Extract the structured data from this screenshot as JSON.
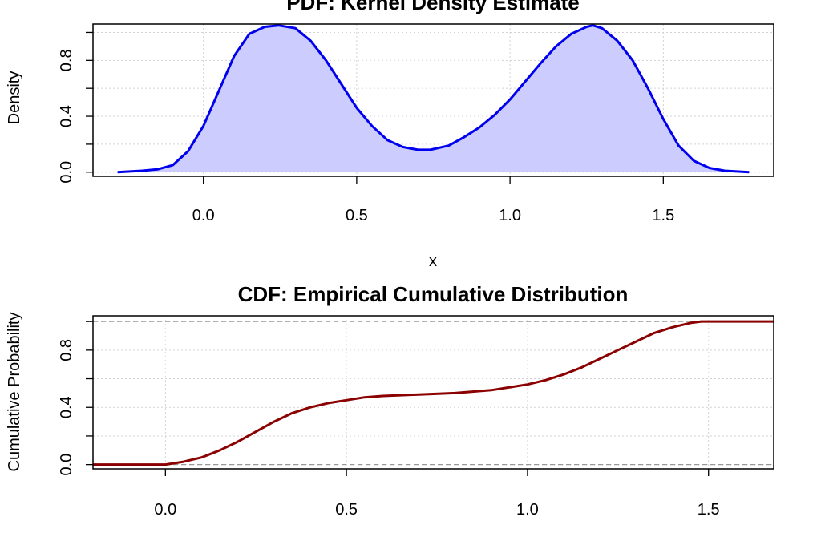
{
  "chart_data": [
    {
      "type": "area",
      "title": "PDF: Kernel Density Estimate",
      "xlabel": "x",
      "ylabel": "Density",
      "xlim": [
        -0.36,
        1.86
      ],
      "ylim": [
        -0.03,
        1.06
      ],
      "xticks": [
        "0.0",
        "0.5",
        "1.0",
        "1.5"
      ],
      "xtick_values": [
        0,
        0.5,
        1.0,
        1.5
      ],
      "yticks": [
        "0.0",
        "0.4",
        "0.8"
      ],
      "ytick_values": [
        0,
        0.4,
        0.8
      ],
      "grid": true,
      "line_color": "#0000ee",
      "fill_color": "#ccccff",
      "series": [
        {
          "x": [
            -0.28,
            -0.2,
            -0.15,
            -0.1,
            -0.05,
            0.0,
            0.05,
            0.1,
            0.15,
            0.2,
            0.245,
            0.3,
            0.35,
            0.4,
            0.45,
            0.5,
            0.55,
            0.6,
            0.65,
            0.7,
            0.74,
            0.8,
            0.85,
            0.9,
            0.95,
            1.0,
            1.05,
            1.1,
            1.15,
            1.2,
            1.25,
            1.27,
            1.3,
            1.35,
            1.4,
            1.45,
            1.5,
            1.55,
            1.6,
            1.65,
            1.7,
            1.78
          ],
          "y": [
            0.0,
            0.01,
            0.02,
            0.05,
            0.15,
            0.33,
            0.58,
            0.83,
            0.99,
            1.04,
            1.05,
            1.03,
            0.94,
            0.8,
            0.63,
            0.46,
            0.33,
            0.23,
            0.18,
            0.16,
            0.16,
            0.19,
            0.25,
            0.32,
            0.41,
            0.52,
            0.65,
            0.78,
            0.9,
            0.99,
            1.04,
            1.05,
            1.03,
            0.94,
            0.8,
            0.6,
            0.38,
            0.19,
            0.08,
            0.03,
            0.01,
            0.0
          ]
        }
      ]
    },
    {
      "type": "line",
      "title": "CDF: Empirical Cumulative Distribution",
      "xlabel": "",
      "ylabel": "Cumulative Probability",
      "xlim": [
        -0.2,
        1.68
      ],
      "ylim": [
        -0.03,
        1.04
      ],
      "xticks": [
        "0.0",
        "0.5",
        "1.0",
        "1.5"
      ],
      "xtick_values": [
        0,
        0.5,
        1.0,
        1.5
      ],
      "yticks": [
        "0.0",
        "0.4",
        "0.8"
      ],
      "ytick_values": [
        0,
        0.4,
        0.8
      ],
      "grid": true,
      "reference_lines_y": [
        0,
        1
      ],
      "line_color": "#8b0000",
      "series": [
        {
          "x": [
            -0.2,
            0.0,
            0.05,
            0.1,
            0.15,
            0.2,
            0.25,
            0.3,
            0.35,
            0.4,
            0.45,
            0.5,
            0.55,
            0.6,
            0.7,
            0.8,
            0.9,
            1.0,
            1.05,
            1.1,
            1.15,
            1.2,
            1.25,
            1.3,
            1.35,
            1.4,
            1.45,
            1.48,
            1.68
          ],
          "y": [
            0.0,
            0.0,
            0.02,
            0.05,
            0.1,
            0.16,
            0.23,
            0.3,
            0.36,
            0.4,
            0.43,
            0.45,
            0.47,
            0.48,
            0.49,
            0.5,
            0.52,
            0.56,
            0.59,
            0.63,
            0.68,
            0.74,
            0.8,
            0.86,
            0.92,
            0.96,
            0.99,
            1.0,
            1.0
          ]
        }
      ]
    }
  ]
}
